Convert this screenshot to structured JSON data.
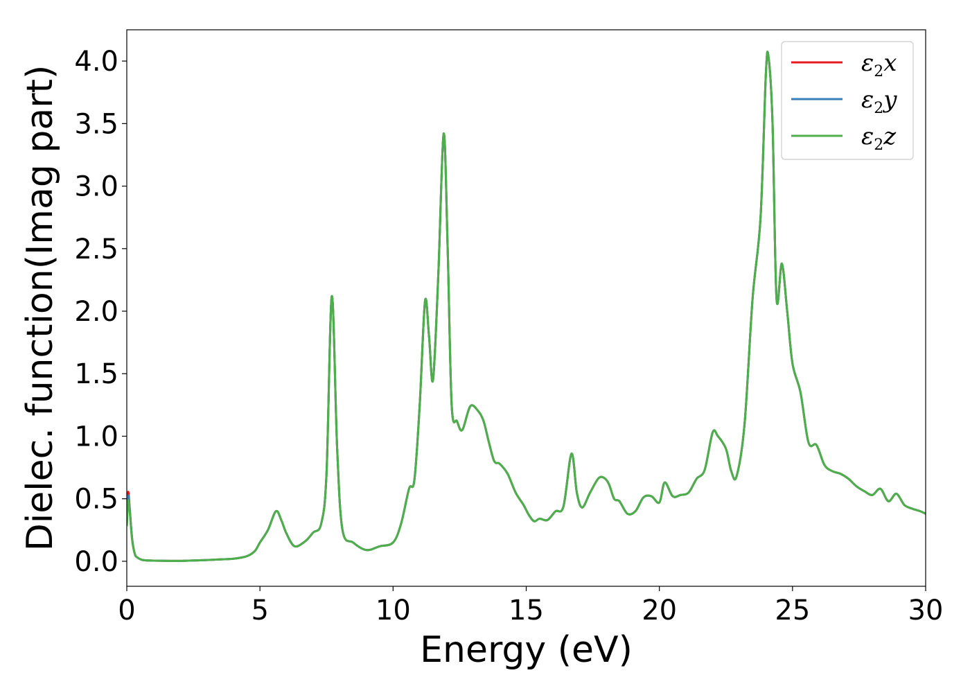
{
  "chart_data": {
    "type": "line",
    "title": "",
    "xlabel": "Energy (eV)",
    "ylabel": "Dielec. function(Imag part)",
    "xlim": [
      0,
      30
    ],
    "ylim": [
      -0.2,
      4.25
    ],
    "xticks": [
      0,
      5,
      10,
      15,
      20,
      25,
      30
    ],
    "xtick_labels": [
      "0",
      "5",
      "10",
      "15",
      "20",
      "25",
      "30"
    ],
    "yticks": [
      0.0,
      0.5,
      1.0,
      1.5,
      2.0,
      2.5,
      3.0,
      3.5,
      4.0
    ],
    "ytick_labels": [
      "0.0",
      "0.5",
      "1.0",
      "1.5",
      "2.0",
      "2.5",
      "3.0",
      "3.5",
      "4.0"
    ],
    "grid": false,
    "legend_position": "top-right",
    "series": [
      {
        "name": "ε2x",
        "legend_symbol": "ε",
        "legend_sub": "2",
        "legend_var": "x",
        "color": "#e41a1c",
        "x": [
          0,
          0.05,
          0.1,
          0.2,
          0.3,
          0.4,
          0.6,
          1.0,
          2.0,
          3.0,
          3.5,
          4.0,
          4.5,
          4.8,
          5.0,
          5.3,
          5.6,
          5.8,
          6.0,
          6.3,
          6.7,
          7.0,
          7.3,
          7.5,
          7.7,
          7.9,
          8.1,
          8.5,
          9.0,
          9.5,
          10.0,
          10.3,
          10.6,
          10.8,
          11.0,
          11.2,
          11.35,
          11.5,
          11.7,
          11.9,
          12.05,
          12.2,
          12.4,
          12.6,
          12.9,
          13.2,
          13.4,
          13.6,
          13.8,
          14.0,
          14.3,
          14.6,
          14.9,
          15.1,
          15.3,
          15.5,
          15.8,
          16.1,
          16.4,
          16.7,
          16.9,
          17.1,
          17.4,
          17.7,
          17.9,
          18.1,
          18.3,
          18.5,
          18.8,
          19.1,
          19.4,
          19.7,
          20.0,
          20.2,
          20.5,
          20.8,
          21.1,
          21.4,
          21.7,
          22.0,
          22.2,
          22.5,
          22.7,
          22.9,
          23.2,
          23.5,
          23.8,
          24.0,
          24.1,
          24.25,
          24.4,
          24.6,
          24.8,
          25.0,
          25.3,
          25.6,
          25.9,
          26.2,
          26.5,
          26.8,
          27.1,
          27.4,
          27.7,
          28.0,
          28.3,
          28.6,
          28.9,
          29.2,
          29.5,
          29.8,
          30.0
        ],
        "y": [
          0.3,
          0.55,
          0.45,
          0.18,
          0.06,
          0.03,
          0.01,
          0.005,
          0.003,
          0.01,
          0.015,
          0.02,
          0.04,
          0.08,
          0.15,
          0.25,
          0.4,
          0.33,
          0.22,
          0.12,
          0.16,
          0.23,
          0.3,
          0.7,
          2.12,
          0.9,
          0.25,
          0.15,
          0.09,
          0.12,
          0.15,
          0.3,
          0.58,
          0.65,
          1.25,
          2.08,
          1.8,
          1.45,
          2.3,
          3.42,
          2.5,
          1.25,
          1.12,
          1.05,
          1.24,
          1.2,
          1.12,
          0.95,
          0.8,
          0.78,
          0.7,
          0.55,
          0.45,
          0.37,
          0.32,
          0.34,
          0.33,
          0.4,
          0.44,
          0.86,
          0.55,
          0.43,
          0.55,
          0.66,
          0.67,
          0.62,
          0.5,
          0.48,
          0.38,
          0.4,
          0.51,
          0.52,
          0.47,
          0.63,
          0.52,
          0.53,
          0.55,
          0.66,
          0.73,
          1.03,
          1.0,
          0.9,
          0.72,
          0.68,
          1.1,
          2.1,
          2.75,
          3.9,
          4.03,
          3.5,
          2.1,
          2.38,
          2.0,
          1.58,
          1.35,
          0.95,
          0.93,
          0.77,
          0.72,
          0.7,
          0.66,
          0.6,
          0.56,
          0.53,
          0.58,
          0.48,
          0.54,
          0.45,
          0.42,
          0.4,
          0.38
        ]
      },
      {
        "name": "ε2y",
        "legend_symbol": "ε",
        "legend_sub": "2",
        "legend_var": "y",
        "color": "#377eb8",
        "x": [
          0,
          0.05,
          0.1,
          0.2,
          0.3,
          0.4,
          0.6,
          1.0,
          2.0,
          3.0,
          3.5,
          4.0,
          4.5,
          4.8,
          5.0,
          5.3,
          5.6,
          5.8,
          6.0,
          6.3,
          6.7,
          7.0,
          7.3,
          7.5,
          7.7,
          7.9,
          8.1,
          8.5,
          9.0,
          9.5,
          10.0,
          10.3,
          10.6,
          10.8,
          11.0,
          11.2,
          11.35,
          11.5,
          11.7,
          11.9,
          12.05,
          12.2,
          12.4,
          12.6,
          12.9,
          13.2,
          13.4,
          13.6,
          13.8,
          14.0,
          14.3,
          14.6,
          14.9,
          15.1,
          15.3,
          15.5,
          15.8,
          16.1,
          16.4,
          16.7,
          16.9,
          17.1,
          17.4,
          17.7,
          17.9,
          18.1,
          18.3,
          18.5,
          18.8,
          19.1,
          19.4,
          19.7,
          20.0,
          20.2,
          20.5,
          20.8,
          21.1,
          21.4,
          21.7,
          22.0,
          22.2,
          22.5,
          22.7,
          22.9,
          23.2,
          23.5,
          23.8,
          24.0,
          24.1,
          24.25,
          24.4,
          24.6,
          24.8,
          25.0,
          25.3,
          25.6,
          25.9,
          26.2,
          26.5,
          26.8,
          27.1,
          27.4,
          27.7,
          28.0,
          28.3,
          28.6,
          28.9,
          29.2,
          29.5,
          29.8,
          30.0
        ],
        "y": [
          0.3,
          0.52,
          0.44,
          0.18,
          0.06,
          0.03,
          0.01,
          0.005,
          0.003,
          0.01,
          0.015,
          0.02,
          0.04,
          0.08,
          0.15,
          0.25,
          0.4,
          0.33,
          0.22,
          0.12,
          0.16,
          0.23,
          0.3,
          0.7,
          2.12,
          0.9,
          0.25,
          0.15,
          0.09,
          0.12,
          0.15,
          0.3,
          0.58,
          0.65,
          1.25,
          2.08,
          1.8,
          1.45,
          2.3,
          3.42,
          2.5,
          1.25,
          1.12,
          1.05,
          1.24,
          1.2,
          1.12,
          0.95,
          0.8,
          0.78,
          0.7,
          0.55,
          0.45,
          0.37,
          0.32,
          0.34,
          0.33,
          0.4,
          0.44,
          0.86,
          0.55,
          0.43,
          0.55,
          0.66,
          0.67,
          0.62,
          0.5,
          0.48,
          0.38,
          0.4,
          0.51,
          0.52,
          0.47,
          0.63,
          0.52,
          0.53,
          0.55,
          0.66,
          0.73,
          1.03,
          1.0,
          0.9,
          0.72,
          0.68,
          1.1,
          2.1,
          2.75,
          3.9,
          4.03,
          3.5,
          2.1,
          2.38,
          2.0,
          1.58,
          1.35,
          0.95,
          0.93,
          0.77,
          0.72,
          0.7,
          0.66,
          0.6,
          0.56,
          0.53,
          0.58,
          0.48,
          0.54,
          0.45,
          0.42,
          0.4,
          0.38
        ]
      },
      {
        "name": "ε2z",
        "legend_symbol": "ε",
        "legend_sub": "2",
        "legend_var": "z",
        "color": "#4daf4a",
        "x": [
          0,
          0.05,
          0.1,
          0.2,
          0.3,
          0.4,
          0.6,
          1.0,
          2.0,
          3.0,
          3.5,
          4.0,
          4.5,
          4.8,
          5.0,
          5.3,
          5.6,
          5.8,
          6.0,
          6.3,
          6.7,
          7.0,
          7.3,
          7.5,
          7.7,
          7.9,
          8.1,
          8.5,
          9.0,
          9.5,
          10.0,
          10.3,
          10.6,
          10.8,
          11.0,
          11.2,
          11.35,
          11.5,
          11.7,
          11.9,
          12.05,
          12.2,
          12.4,
          12.6,
          12.9,
          13.2,
          13.4,
          13.6,
          13.8,
          14.0,
          14.3,
          14.6,
          14.9,
          15.1,
          15.3,
          15.5,
          15.8,
          16.1,
          16.4,
          16.7,
          16.9,
          17.1,
          17.4,
          17.7,
          17.9,
          18.1,
          18.3,
          18.5,
          18.8,
          19.1,
          19.4,
          19.7,
          20.0,
          20.2,
          20.5,
          20.8,
          21.1,
          21.4,
          21.7,
          22.0,
          22.2,
          22.5,
          22.7,
          22.9,
          23.2,
          23.5,
          23.8,
          24.0,
          24.1,
          24.25,
          24.4,
          24.6,
          24.8,
          25.0,
          25.3,
          25.6,
          25.9,
          26.2,
          26.5,
          26.8,
          27.1,
          27.4,
          27.7,
          28.0,
          28.3,
          28.6,
          28.9,
          29.2,
          29.5,
          29.8,
          30.0
        ],
        "y": [
          0.28,
          0.48,
          0.42,
          0.17,
          0.06,
          0.03,
          0.01,
          0.005,
          0.003,
          0.01,
          0.015,
          0.02,
          0.04,
          0.08,
          0.15,
          0.25,
          0.4,
          0.33,
          0.22,
          0.12,
          0.16,
          0.23,
          0.3,
          0.7,
          2.12,
          0.9,
          0.25,
          0.15,
          0.09,
          0.12,
          0.15,
          0.3,
          0.58,
          0.65,
          1.25,
          2.08,
          1.8,
          1.45,
          2.3,
          3.42,
          2.5,
          1.25,
          1.12,
          1.05,
          1.24,
          1.2,
          1.12,
          0.95,
          0.8,
          0.78,
          0.7,
          0.55,
          0.45,
          0.37,
          0.32,
          0.34,
          0.33,
          0.4,
          0.44,
          0.86,
          0.55,
          0.43,
          0.55,
          0.66,
          0.67,
          0.62,
          0.5,
          0.48,
          0.38,
          0.4,
          0.51,
          0.52,
          0.47,
          0.63,
          0.52,
          0.53,
          0.55,
          0.66,
          0.73,
          1.03,
          1.0,
          0.9,
          0.72,
          0.68,
          1.1,
          2.1,
          2.75,
          3.9,
          4.03,
          3.5,
          2.1,
          2.38,
          2.0,
          1.58,
          1.35,
          0.95,
          0.93,
          0.77,
          0.72,
          0.7,
          0.66,
          0.6,
          0.56,
          0.53,
          0.58,
          0.48,
          0.54,
          0.45,
          0.42,
          0.4,
          0.38
        ]
      }
    ]
  }
}
